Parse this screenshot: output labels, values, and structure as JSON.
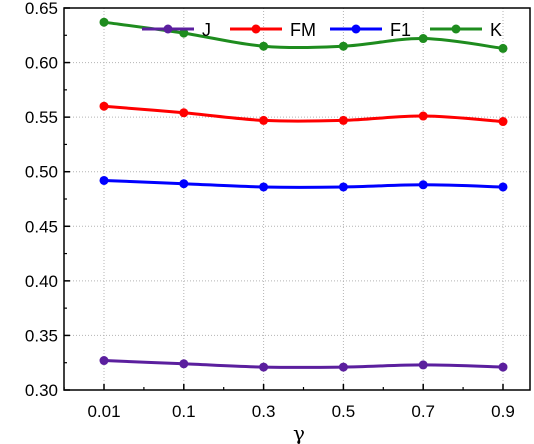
{
  "chart_data": {
    "type": "line",
    "title": "",
    "xlabel": "γ",
    "ylabel": "",
    "categories": [
      "0.01",
      "0.1",
      "0.3",
      "0.5",
      "0.7",
      "0.9"
    ],
    "ylim": [
      0.3,
      0.65
    ],
    "yticks": [
      "0.30",
      "0.35",
      "0.40",
      "0.45",
      "0.50",
      "0.55",
      "0.60",
      "0.65"
    ],
    "grid": true,
    "legend": "top",
    "series": [
      {
        "name": "J",
        "color": "#5b1f9e",
        "values": [
          0.327,
          0.324,
          0.321,
          0.321,
          0.323,
          0.321
        ]
      },
      {
        "name": "FM",
        "color": "#ff0000",
        "values": [
          0.56,
          0.554,
          0.547,
          0.547,
          0.551,
          0.546
        ]
      },
      {
        "name": "F1",
        "color": "#0000ff",
        "values": [
          0.492,
          0.489,
          0.486,
          0.486,
          0.488,
          0.486
        ]
      },
      {
        "name": "K",
        "color": "#1e8c1e",
        "values": [
          0.637,
          0.627,
          0.615,
          0.615,
          0.622,
          0.613
        ]
      }
    ]
  }
}
